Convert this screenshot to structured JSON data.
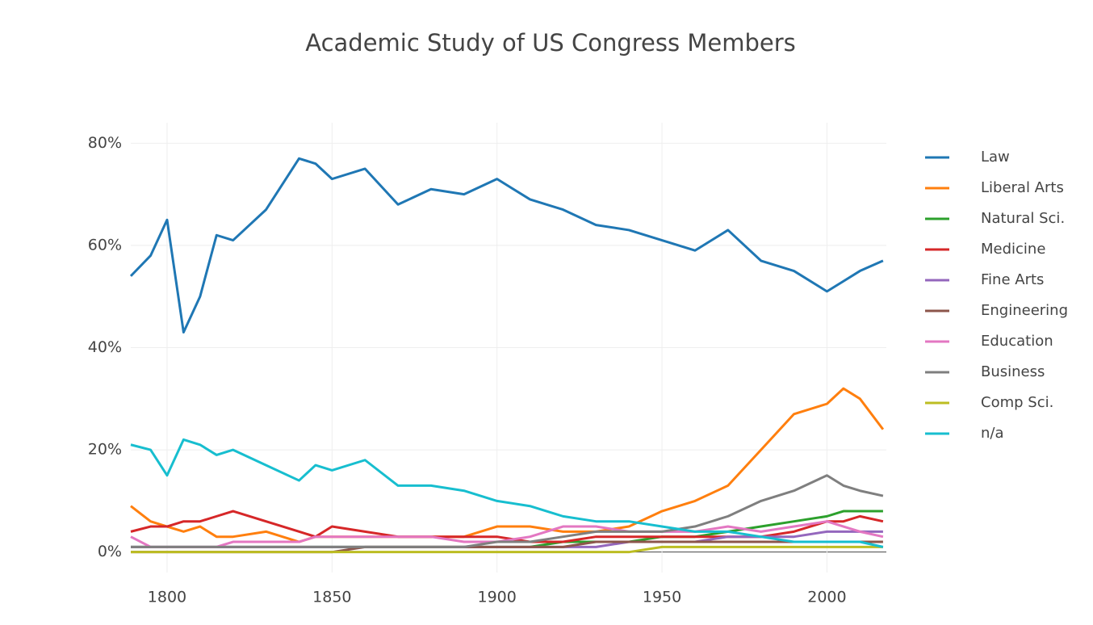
{
  "chart_data": {
    "type": "line",
    "title": "Academic Study of US Congress Members",
    "x": [
      1789,
      1795,
      1800,
      1805,
      1810,
      1815,
      1820,
      1830,
      1840,
      1845,
      1850,
      1860,
      1870,
      1880,
      1890,
      1900,
      1910,
      1920,
      1930,
      1940,
      1950,
      1960,
      1970,
      1980,
      1990,
      2000,
      2005,
      2010,
      2017
    ],
    "series": [
      {
        "name": "Law",
        "color": "#1f77b4",
        "values": [
          54,
          58,
          65,
          43,
          50,
          62,
          61,
          67,
          77,
          76,
          73,
          75,
          68,
          71,
          70,
          73,
          69,
          67,
          64,
          63,
          61,
          59,
          63,
          57,
          55,
          51,
          53,
          55,
          57
        ]
      },
      {
        "name": "Liberal Arts",
        "color": "#ff7f0e",
        "values": [
          9,
          6,
          5,
          4,
          5,
          3,
          3,
          4,
          2,
          3,
          3,
          3,
          3,
          3,
          3,
          5,
          5,
          4,
          4,
          5,
          8,
          10,
          13,
          20,
          27,
          29,
          32,
          30,
          24
        ]
      },
      {
        "name": "Natural Sci.",
        "color": "#2ca02c",
        "values": [
          1,
          1,
          1,
          1,
          1,
          1,
          1,
          1,
          1,
          1,
          1,
          1,
          1,
          1,
          1,
          1,
          1,
          2,
          2,
          2,
          3,
          3,
          4,
          5,
          6,
          7,
          8,
          8,
          8
        ]
      },
      {
        "name": "Medicine",
        "color": "#d62728",
        "values": [
          4,
          5,
          5,
          6,
          6,
          7,
          8,
          6,
          4,
          3,
          5,
          4,
          3,
          3,
          3,
          3,
          2,
          2,
          3,
          3,
          3,
          3,
          3,
          3,
          4,
          6,
          6,
          7,
          6
        ]
      },
      {
        "name": "Fine Arts",
        "color": "#9467bd",
        "values": [
          1,
          1,
          1,
          1,
          1,
          1,
          1,
          1,
          1,
          1,
          1,
          1,
          1,
          1,
          1,
          1,
          1,
          1,
          1,
          2,
          2,
          2,
          3,
          3,
          3,
          4,
          4,
          4,
          4
        ]
      },
      {
        "name": "Engineering",
        "color": "#8c564b",
        "values": [
          0,
          0,
          0,
          0,
          0,
          0,
          0,
          0,
          0,
          0,
          0,
          1,
          1,
          1,
          1,
          1,
          1,
          1,
          2,
          2,
          2,
          2,
          2,
          2,
          2,
          2,
          2,
          2,
          2
        ]
      },
      {
        "name": "Education",
        "color": "#e377c2",
        "values": [
          3,
          1,
          1,
          1,
          1,
          1,
          2,
          2,
          2,
          3,
          3,
          3,
          3,
          3,
          2,
          2,
          3,
          5,
          5,
          4,
          4,
          4,
          5,
          4,
          5,
          6,
          5,
          4,
          3
        ]
      },
      {
        "name": "Business",
        "color": "#7f7f7f",
        "values": [
          1,
          1,
          1,
          1,
          1,
          1,
          1,
          1,
          1,
          1,
          1,
          1,
          1,
          1,
          1,
          2,
          2,
          3,
          4,
          4,
          4,
          5,
          7,
          10,
          12,
          15,
          13,
          12,
          11
        ]
      },
      {
        "name": "Comp Sci.",
        "color": "#bcbd22",
        "values": [
          0,
          0,
          0,
          0,
          0,
          0,
          0,
          0,
          0,
          0,
          0,
          0,
          0,
          0,
          0,
          0,
          0,
          0,
          0,
          0,
          1,
          1,
          1,
          1,
          1,
          1,
          1,
          1,
          1
        ]
      },
      {
        "name": "n/a",
        "color": "#17becf",
        "values": [
          21,
          20,
          15,
          22,
          21,
          19,
          20,
          17,
          14,
          17,
          16,
          18,
          13,
          13,
          12,
          10,
          9,
          7,
          6,
          6,
          5,
          4,
          4,
          3,
          2,
          2,
          2,
          2,
          1
        ]
      }
    ],
    "xlim": [
      1789,
      2018
    ],
    "xticks": [
      1800,
      1850,
      1900,
      1950,
      2000
    ],
    "ylim": [
      -4,
      84
    ],
    "yticks": [
      {
        "value": 0,
        "label": "0%"
      },
      {
        "value": 20,
        "label": "20%"
      },
      {
        "value": 40,
        "label": "40%"
      },
      {
        "value": 60,
        "label": "60%"
      },
      {
        "value": 80,
        "label": "80%"
      }
    ],
    "grid": true,
    "legend": "right"
  }
}
